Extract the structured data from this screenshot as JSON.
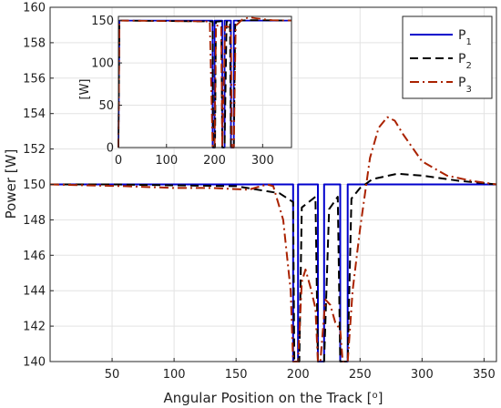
{
  "chart_data": [
    {
      "id": "main",
      "type": "line",
      "title": "",
      "xlabel": "Angular Position on the Track [",
      "xlabel_sup": "o",
      "xlabel_tail": "]",
      "ylabel": "Power [W]",
      "xlim": [
        0,
        360
      ],
      "ylim": [
        140,
        160
      ],
      "xticks": [
        50,
        100,
        150,
        200,
        250,
        300,
        350
      ],
      "yticks": [
        140,
        142,
        144,
        146,
        148,
        150,
        152,
        154,
        156,
        158,
        160
      ],
      "grid": true,
      "legend_position": "top-right",
      "series": [
        {
          "name": "P",
          "sub": "1",
          "color": "#0000cc",
          "dash": "solid",
          "x": [
            0,
            196,
            196,
            200,
            200,
            216,
            216,
            221,
            221,
            234,
            234,
            240,
            240,
            360
          ],
          "y": [
            150,
            150,
            140,
            140,
            150,
            150,
            140,
            140,
            150,
            150,
            140,
            140,
            150,
            150
          ]
        },
        {
          "name": "P",
          "sub": "2",
          "color": "#000000",
          "dash": "dashed",
          "x": [
            0,
            50,
            100,
            150,
            185,
            196,
            197,
            201,
            203,
            214,
            216,
            221,
            225,
            232,
            234,
            240,
            243,
            250,
            260,
            280,
            300,
            330,
            360
          ],
          "y": [
            150,
            150,
            149.95,
            149.9,
            149.5,
            149,
            140,
            140,
            148.7,
            149.3,
            140,
            140,
            148.6,
            149.3,
            140,
            140,
            149.2,
            149.8,
            150.3,
            150.6,
            150.5,
            150.2,
            150
          ]
        },
        {
          "name": "P",
          "sub": "3",
          "color": "#aa2200",
          "dash": "dashdot",
          "x": [
            0,
            30,
            60,
            100,
            130,
            160,
            175,
            180,
            188,
            194,
            196,
            200,
            203,
            206,
            210,
            214,
            216,
            218,
            222,
            226,
            230,
            234,
            236,
            240,
            244,
            250,
            258,
            265,
            272,
            278,
            285,
            300,
            320,
            340,
            360
          ],
          "y": [
            150,
            149.95,
            149.9,
            149.8,
            149.8,
            149.7,
            150,
            149.9,
            148,
            144,
            140,
            140,
            144.5,
            145.2,
            144.2,
            143,
            140,
            140,
            143.5,
            143.2,
            142.2,
            141.8,
            140,
            140,
            144,
            147.5,
            151.5,
            153.2,
            153.8,
            153.6,
            152.8,
            151.3,
            150.5,
            150.2,
            150
          ]
        }
      ]
    },
    {
      "id": "inset",
      "type": "line",
      "ylabel": "[W]",
      "xlim": [
        0,
        360
      ],
      "ylim": [
        0,
        155
      ],
      "xticks": [
        0,
        100,
        200,
        300
      ],
      "yticks": [
        0,
        50,
        100,
        150
      ],
      "grid": true,
      "series": [
        {
          "name": "P1",
          "color": "#0000cc",
          "dash": "solid",
          "x": [
            0,
            2,
            196,
            196,
            200,
            200,
            216,
            216,
            221,
            221,
            234,
            234,
            240,
            240,
            360
          ],
          "y": [
            0,
            150,
            150,
            0,
            0,
            150,
            150,
            0,
            0,
            150,
            150,
            0,
            0,
            150,
            150
          ]
        },
        {
          "name": "P2",
          "color": "#000000",
          "dash": "dashed",
          "x": [
            0,
            2,
            196,
            197,
            201,
            203,
            214,
            216,
            221,
            225,
            232,
            234,
            240,
            243,
            260,
            280,
            360
          ],
          "y": [
            0,
            150,
            149,
            0,
            0,
            148.7,
            149.3,
            0,
            0,
            148.6,
            149.3,
            0,
            0,
            149.2,
            150.3,
            150.6,
            150
          ]
        },
        {
          "name": "P3",
          "color": "#aa2200",
          "dash": "dashdot",
          "x": [
            0,
            2,
            190,
            196,
            200,
            203,
            214,
            216,
            222,
            234,
            236,
            240,
            244,
            258,
            272,
            285,
            320,
            360
          ],
          "y": [
            0,
            150,
            149,
            0,
            0,
            144.5,
            143,
            0,
            143.5,
            141.8,
            0,
            0,
            144,
            151.5,
            153.8,
            152.8,
            150.5,
            150
          ]
        }
      ]
    }
  ]
}
